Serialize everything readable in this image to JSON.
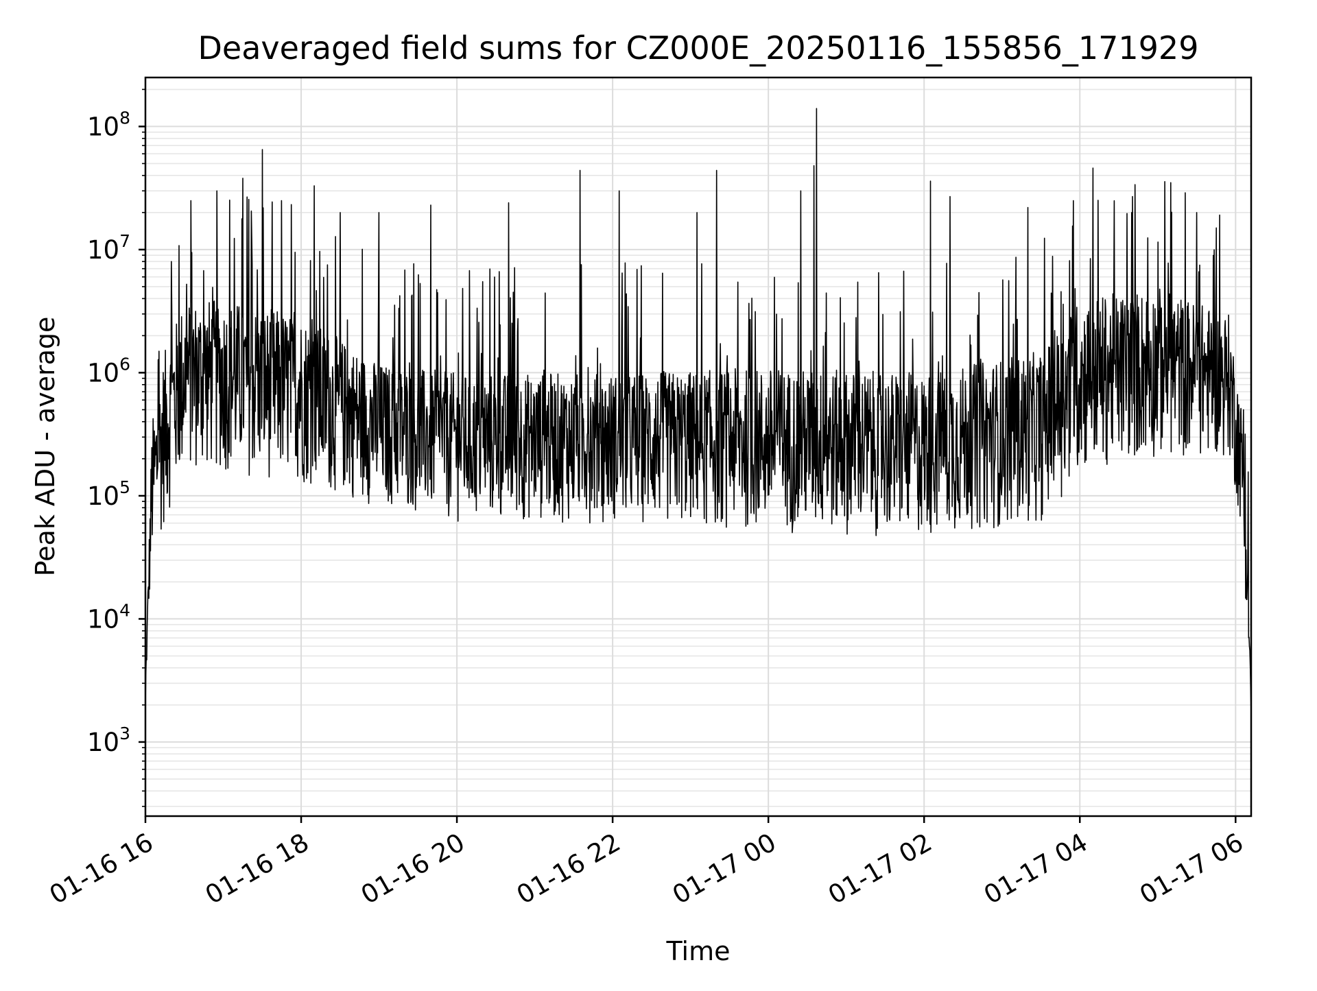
{
  "chart_data": {
    "type": "line",
    "title": "Deaveraged field sums for CZ000E_20250116_155856_171929",
    "xlabel": "Time",
    "ylabel": "Peak ADU - average",
    "yscale": "log",
    "ylim": [
      250,
      250000000
    ],
    "xlim": [
      "2025-01-16 16:00",
      "2025-01-17 06:12"
    ],
    "grid": true,
    "line_color": "#000000",
    "x_ticks": [
      {
        "value": "2025-01-16 16:00",
        "label": "01-16 16"
      },
      {
        "value": "2025-01-16 18:00",
        "label": "01-16 18"
      },
      {
        "value": "2025-01-16 20:00",
        "label": "01-16 20"
      },
      {
        "value": "2025-01-16 22:00",
        "label": "01-16 22"
      },
      {
        "value": "2025-01-17 00:00",
        "label": "01-17 00"
      },
      {
        "value": "2025-01-17 02:00",
        "label": "01-17 02"
      },
      {
        "value": "2025-01-17 04:00",
        "label": "01-17 04"
      },
      {
        "value": "2025-01-17 06:00",
        "label": "01-17 06"
      }
    ],
    "y_ticks": [
      {
        "value": 1000,
        "base": "10",
        "exp": "3"
      },
      {
        "value": 10000,
        "base": "10",
        "exp": "4"
      },
      {
        "value": 100000,
        "base": "10",
        "exp": "5"
      },
      {
        "value": 1000000,
        "base": "10",
        "exp": "6"
      },
      {
        "value": 10000000,
        "base": "10",
        "exp": "7"
      },
      {
        "value": 100000000,
        "base": "10",
        "exp": "8"
      }
    ],
    "series": [
      {
        "envelope": [
          {
            "t": "2025-01-16 16:00",
            "low": 2000,
            "high": 3000
          },
          {
            "t": "2025-01-16 16:02",
            "low": 8000,
            "high": 20000
          },
          {
            "t": "2025-01-16 16:05",
            "low": 25000,
            "high": 400000
          },
          {
            "t": "2025-01-16 16:15",
            "low": 60000,
            "high": 1500000
          },
          {
            "t": "2025-01-16 16:30",
            "low": 150000,
            "high": 4000000
          },
          {
            "t": "2025-01-16 17:00",
            "low": 150000,
            "high": 4000000
          },
          {
            "t": "2025-01-16 18:00",
            "low": 120000,
            "high": 3000000
          },
          {
            "t": "2025-01-16 19:00",
            "low": 80000,
            "high": 1200000
          },
          {
            "t": "2025-01-16 20:00",
            "low": 60000,
            "high": 1000000
          },
          {
            "t": "2025-01-16 22:00",
            "low": 60000,
            "high": 1000000
          },
          {
            "t": "2025-01-17 00:00",
            "low": 50000,
            "high": 1100000
          },
          {
            "t": "2025-01-17 02:00",
            "low": 45000,
            "high": 1000000
          },
          {
            "t": "2025-01-17 03:30",
            "low": 60000,
            "high": 1500000
          },
          {
            "t": "2025-01-17 04:00",
            "low": 150000,
            "high": 4000000
          },
          {
            "t": "2025-01-17 05:00",
            "low": 200000,
            "high": 5000000
          },
          {
            "t": "2025-01-17 05:55",
            "low": 200000,
            "high": 3000000
          },
          {
            "t": "2025-01-17 06:05",
            "low": 50000,
            "high": 500000
          },
          {
            "t": "2025-01-17 06:10",
            "low": 5000,
            "high": 20000
          },
          {
            "t": "2025-01-17 06:12",
            "low": 1700,
            "high": 2500
          }
        ],
        "spikes": [
          {
            "t": "2025-01-16 16:20",
            "value": 8000000
          },
          {
            "t": "2025-01-16 16:35",
            "value": 25000000
          },
          {
            "t": "2025-01-16 16:55",
            "value": 30000000
          },
          {
            "t": "2025-01-16 17:15",
            "value": 38000000
          },
          {
            "t": "2025-01-16 17:30",
            "value": 65000000
          },
          {
            "t": "2025-01-16 17:45",
            "value": 25000000
          },
          {
            "t": "2025-01-16 18:10",
            "value": 33000000
          },
          {
            "t": "2025-01-16 18:30",
            "value": 20000000
          },
          {
            "t": "2025-01-16 19:00",
            "value": 20000000
          },
          {
            "t": "2025-01-16 19:40",
            "value": 23000000
          },
          {
            "t": "2025-01-16 20:40",
            "value": 24000000
          },
          {
            "t": "2025-01-16 21:35",
            "value": 44000000
          },
          {
            "t": "2025-01-16 22:05",
            "value": 30000000
          },
          {
            "t": "2025-01-16 23:05",
            "value": 20000000
          },
          {
            "t": "2025-01-16 23:20",
            "value": 44000000
          },
          {
            "t": "2025-01-17 00:25",
            "value": 30000000
          },
          {
            "t": "2025-01-17 00:35",
            "value": 48000000
          },
          {
            "t": "2025-01-17 00:37",
            "value": 140000000
          },
          {
            "t": "2025-01-17 01:25",
            "value": 6500000
          },
          {
            "t": "2025-01-17 02:05",
            "value": 36000000
          },
          {
            "t": "2025-01-17 02:20",
            "value": 27000000
          },
          {
            "t": "2025-01-17 03:20",
            "value": 22000000
          },
          {
            "t": "2025-01-17 03:55",
            "value": 25000000
          },
          {
            "t": "2025-01-17 04:10",
            "value": 46000000
          },
          {
            "t": "2025-01-17 04:40",
            "value": 20000000
          },
          {
            "t": "2025-01-17 05:10",
            "value": 35000000
          },
          {
            "t": "2025-01-17 05:30",
            "value": 20000000
          },
          {
            "t": "2025-01-17 05:45",
            "value": 15000000
          }
        ]
      }
    ]
  }
}
